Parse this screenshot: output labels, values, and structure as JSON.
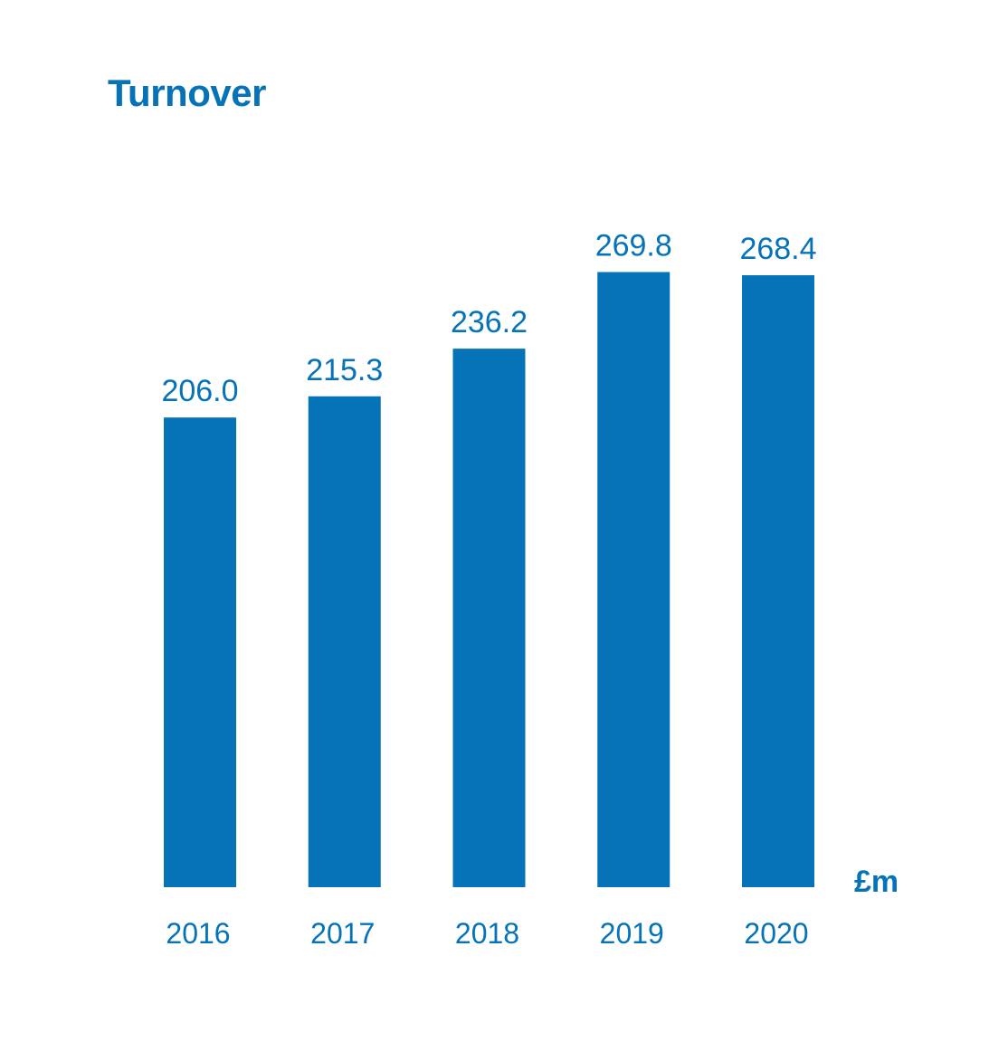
{
  "chart_data": {
    "type": "bar",
    "title": "Turnover",
    "unit_label": "£m",
    "categories": [
      "2016",
      "2017",
      "2018",
      "2019",
      "2020"
    ],
    "values": [
      206.0,
      215.3,
      236.2,
      269.8,
      268.4
    ],
    "value_labels": [
      "206.0",
      "215.3",
      "236.2",
      "269.8",
      "268.4"
    ],
    "ylim": [
      0,
      270
    ],
    "grid": false,
    "legend": "none"
  },
  "colors": {
    "accent": "#0673b9"
  }
}
